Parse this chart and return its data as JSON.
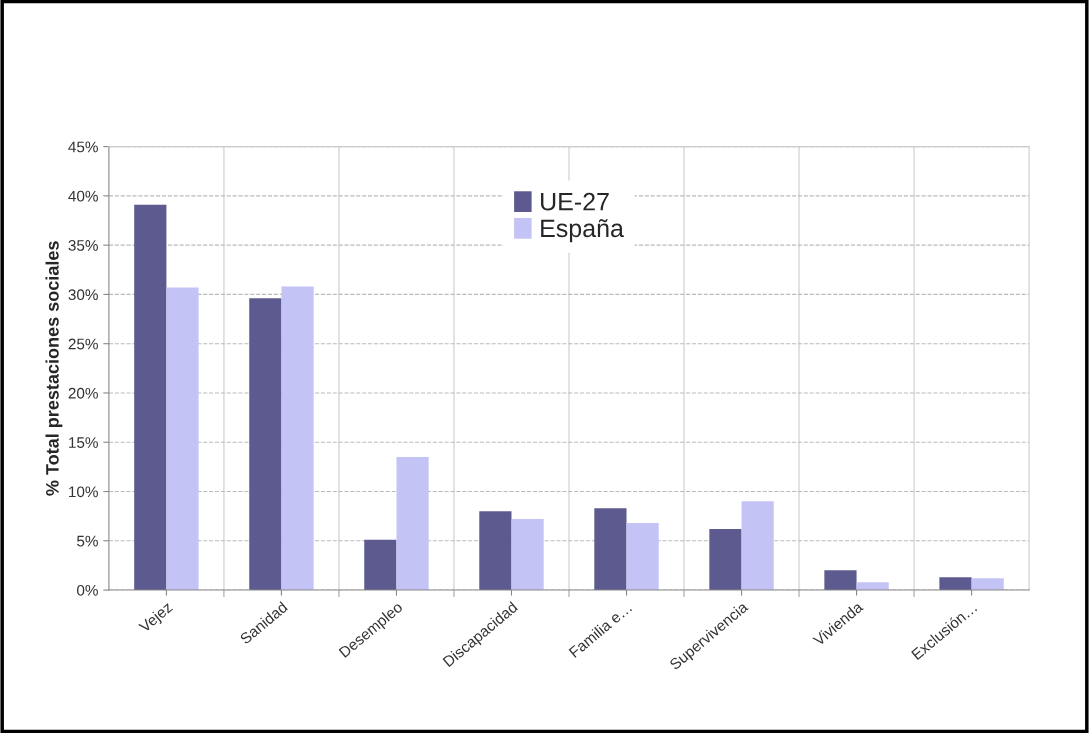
{
  "chart_data": {
    "type": "bar",
    "ylabel": "% Total prestaciones sociales",
    "categories": [
      "Vejez",
      "Sanidad",
      "Desempleo",
      "Discapacidad",
      "Familia e…",
      "Supervivencia",
      "Vivienda",
      "Exclusión…"
    ],
    "series": [
      {
        "name": "UE-27",
        "color": "#5c5a8e",
        "values": [
          39.1,
          29.6,
          5.1,
          8.0,
          8.3,
          6.2,
          2.0,
          1.3
        ]
      },
      {
        "name": "España",
        "color": "#c4c3f5",
        "values": [
          30.7,
          30.8,
          13.5,
          7.2,
          6.8,
          9.0,
          0.8,
          1.2
        ]
      }
    ],
    "ylim": [
      0,
      45
    ],
    "yticks": [
      {
        "value": 0,
        "label": "0%"
      },
      {
        "value": 5,
        "label": "5%"
      },
      {
        "value": 10,
        "label": "10%"
      },
      {
        "value": 15,
        "label": "15%"
      },
      {
        "value": 20,
        "label": "20%"
      },
      {
        "value": 25,
        "label": "25%"
      },
      {
        "value": 30,
        "label": "30%"
      },
      {
        "value": 35,
        "label": "35%"
      },
      {
        "value": 40,
        "label": "40%"
      },
      {
        "value": 45,
        "label": "45%"
      }
    ],
    "grid": true,
    "legend": "top"
  }
}
